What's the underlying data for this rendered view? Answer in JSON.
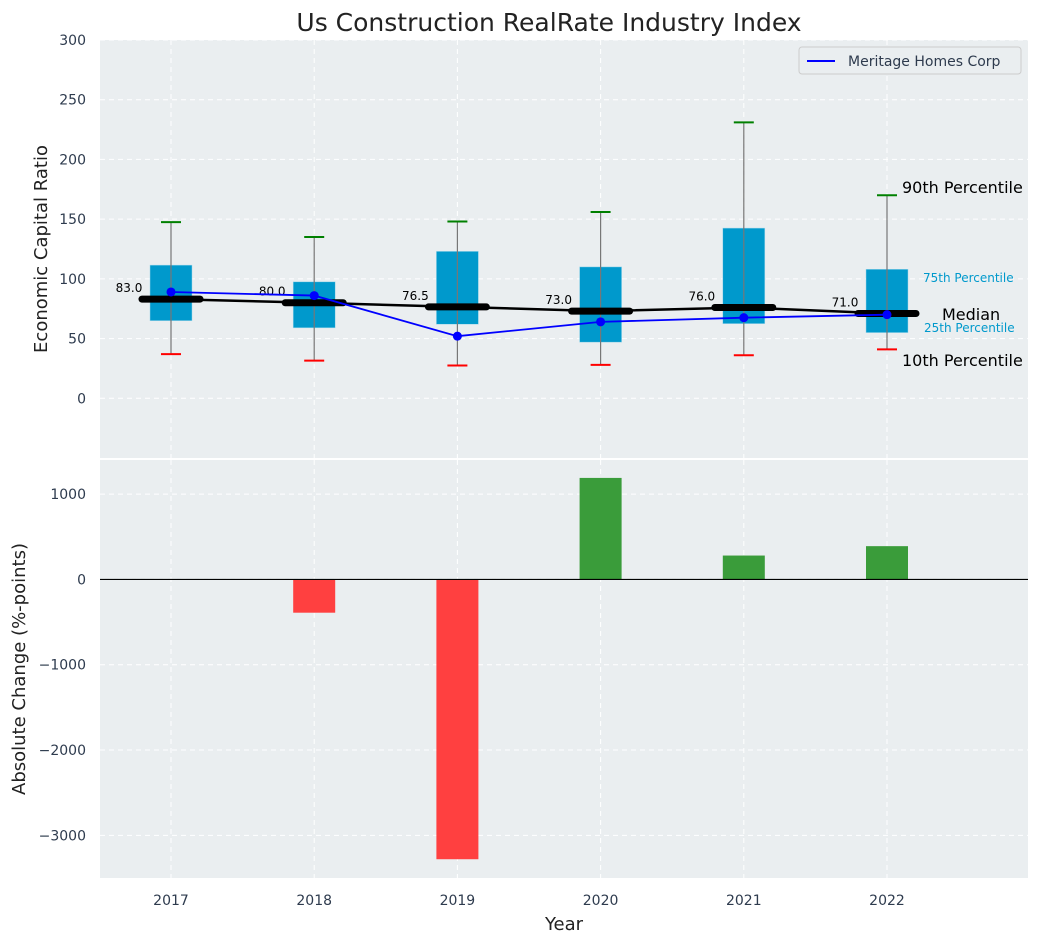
{
  "chart_data": [
    {
      "type": "box",
      "title": "Us Construction RealRate Industry Index",
      "xlabel": "",
      "ylabel": "Economic Capital Ratio",
      "ylim": [
        -50,
        300
      ],
      "yticks": [
        0,
        50,
        100,
        150,
        200,
        250,
        300
      ],
      "grid": true,
      "categories": [
        "2017",
        "2018",
        "2019",
        "2020",
        "2021",
        "2022"
      ],
      "p10": [
        37,
        31.5,
        27.5,
        28,
        36,
        41
      ],
      "p25": [
        65,
        59,
        62,
        47,
        62.5,
        55
      ],
      "median": [
        83.0,
        80.0,
        76.5,
        73.0,
        76.0,
        71.0
      ],
      "p75": [
        111.5,
        97.5,
        123,
        110,
        142.5,
        108
      ],
      "p90": [
        147.5,
        135,
        148,
        156,
        231,
        170
      ],
      "median_labels": [
        "83.0",
        "80.0",
        "76.5",
        "73.0",
        "76.0",
        "71.0"
      ],
      "series": [
        {
          "name": "Meritage Homes Corp",
          "values": [
            89,
            86,
            52,
            64,
            67.5,
            70
          ],
          "color": "#0000ff"
        }
      ],
      "legend": {
        "entries": [
          "Meritage Homes Corp"
        ],
        "placement": "top-right"
      },
      "annotations": [
        "90th Percentile",
        "75th Percentile",
        "Median",
        "25th Percentile",
        "10th Percentile"
      ],
      "colors": {
        "box": "#0099cc",
        "median": "#000000",
        "p90_cap": "#008000",
        "p10_cap": "#ff0000",
        "background": "#eaeef0"
      }
    },
    {
      "type": "bar",
      "xlabel": "Year",
      "ylabel": "Absolute Change (%-points)",
      "ylim": [
        -3500,
        1400
      ],
      "yticks": [
        -3000,
        -2000,
        -1000,
        0,
        1000
      ],
      "ytick_labels": [
        "−3000",
        "−2000",
        "−1000",
        "0",
        "1000"
      ],
      "categories": [
        "2017",
        "2018",
        "2019",
        "2020",
        "2021",
        "2022"
      ],
      "values": [
        0,
        -390,
        -3280,
        1190,
        280,
        390
      ],
      "colors": {
        "positive": "#3a9c3a",
        "negative": "#ff4040"
      }
    }
  ]
}
